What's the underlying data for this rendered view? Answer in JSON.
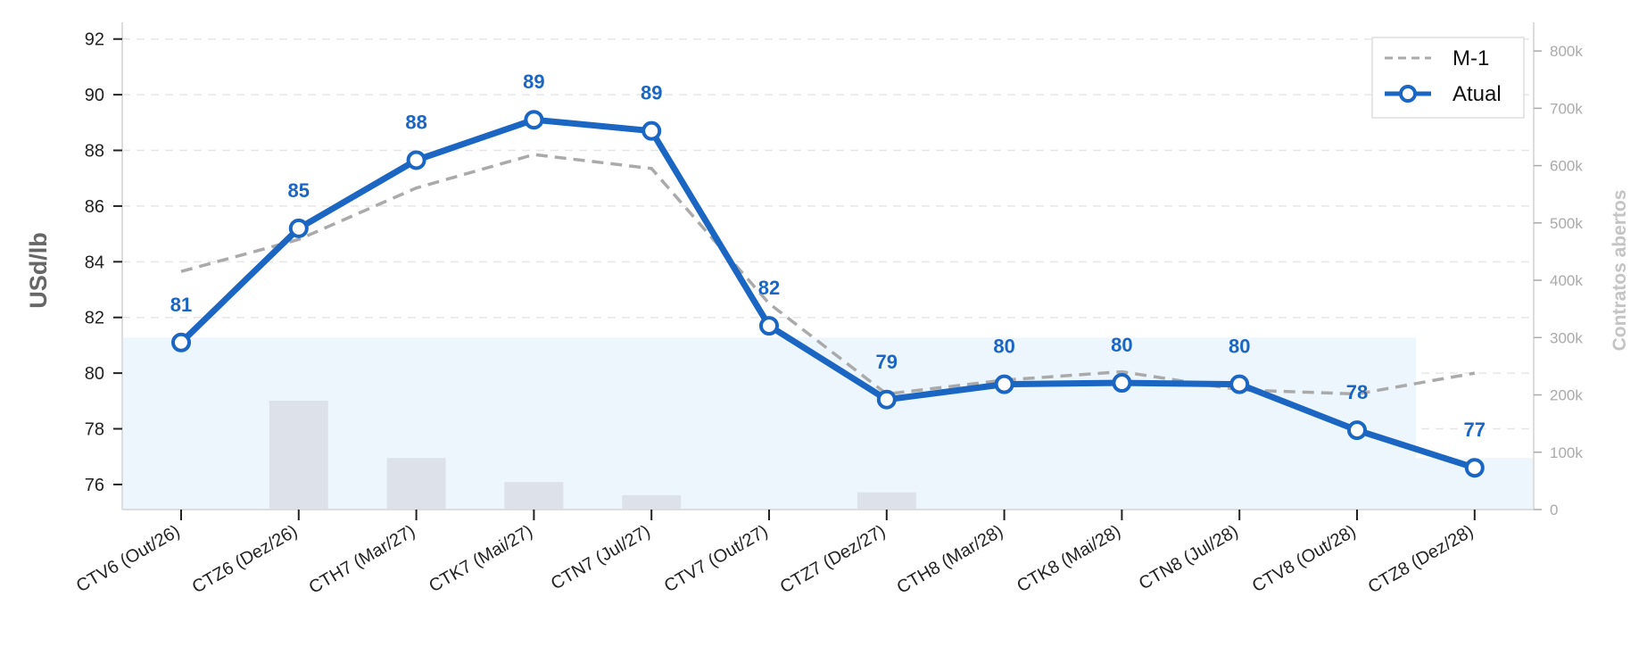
{
  "chart_data": {
    "type": "line",
    "categories": [
      "CTV6 (Out/26)",
      "CTZ6 (Dez/26)",
      "CTH7 (Mar/27)",
      "CTK7 (Mai/27)",
      "CTN7 (Jul/27)",
      "CTV7 (Out/27)",
      "CTZ7 (Dez/27)",
      "CTH8 (Mar/28)",
      "CTK8 (Mai/28)",
      "CTN8 (Jul/28)",
      "CTV8 (Out/28)",
      "CTZ8 (Dez/28)"
    ],
    "series": [
      {
        "name": "M-1",
        "style": "dashed",
        "color": "#aaaaaa",
        "values": [
          83.65,
          84.8,
          86.65,
          87.85,
          87.35,
          82.5,
          79.25,
          79.75,
          80.05,
          79.4,
          79.25,
          80.0
        ]
      },
      {
        "name": "Atual",
        "style": "solid-markers",
        "color": "#1a66c2",
        "values": [
          81.1,
          85.2,
          87.65,
          89.1,
          88.7,
          81.7,
          79.05,
          79.6,
          79.65,
          79.6,
          77.95,
          76.6
        ],
        "data_labels": [
          "81",
          "85",
          "88",
          "89",
          "89",
          "82",
          "79",
          "80",
          "80",
          "80",
          "78",
          "77"
        ]
      }
    ],
    "bars": {
      "name": "Contratos abertos",
      "color": "#dde2ea",
      "values": [
        0,
        190000,
        90000,
        48000,
        25000,
        0,
        30000,
        0,
        0,
        0,
        0,
        0
      ]
    },
    "area": {
      "name": "Contratos abertos",
      "color": "#eef6fd",
      "values": [
        300000,
        300000,
        300000,
        300000,
        300000,
        300000,
        300000,
        300000,
        300000,
        300000,
        300000,
        90000
      ]
    },
    "ylabel": "USd/lb",
    "ylim": [
      75.1,
      92.6
    ],
    "yticks": [
      76,
      78,
      80,
      82,
      84,
      86,
      88,
      90,
      92
    ],
    "y2label": "Contratos abertos",
    "y2lim": [
      0,
      850000
    ],
    "y2ticks": [
      0,
      100000,
      200000,
      300000,
      400000,
      500000,
      600000,
      700000,
      800000
    ],
    "y2ticklabels": [
      "0",
      "100k",
      "200k",
      "300k",
      "400k",
      "500k",
      "600k",
      "700k",
      "800k"
    ],
    "grid": true,
    "legend_position": "top-right"
  }
}
